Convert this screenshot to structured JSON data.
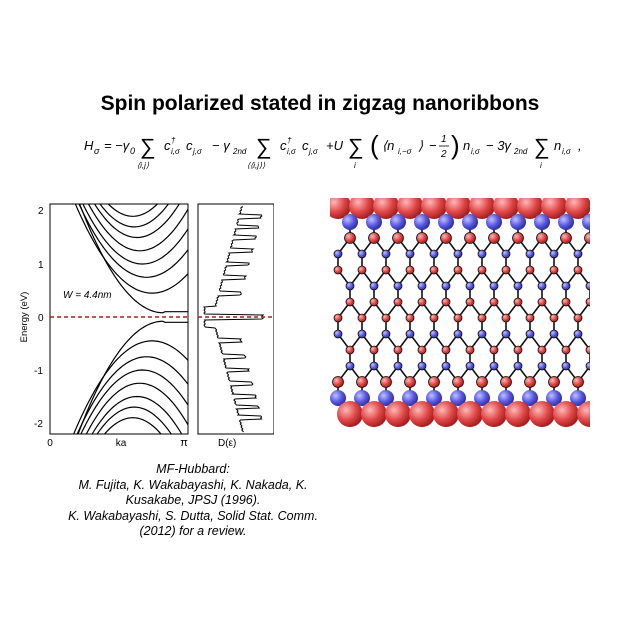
{
  "slide": {
    "title": "Spin polarized stated in zigzag nanoribbons"
  },
  "equation": {
    "H": "H",
    "H_sub": "σ",
    "eq": "= −γ",
    "g0_sub": "0",
    "sum1_sub": "⟨i,j⟩",
    "c1": "c",
    "c1_sup": "†",
    "c1_sub": "i,σ",
    "c2": "c",
    "c2_sub": "j,σ",
    "minus_g2": "− γ",
    "g2_sub": "2nd",
    "sum2_sub": "⟨⟨i,j⟩⟩",
    "c3": "c",
    "c3_sup": "†",
    "c3_sub": "i,σ",
    "c4": "c",
    "c4_sub": "j,σ",
    "plusU": "+U",
    "sum3_sub": "i",
    "n_expect": "⟨n",
    "n_expect_sub": "i,−σ",
    "n_expect_close": "⟩",
    "minus_half": "−",
    "half_num": "1",
    "half_den": "2",
    "n_after": "n",
    "n_after_sub": "i,σ",
    "minus3": "− 3γ",
    "g3_sub": "2nd",
    "sum4_sub": "i",
    "n_last": "n",
    "n_last_sub": "i,σ",
    "end": ","
  },
  "band_plot": {
    "ylabel": "Energy (eV)",
    "xlabel": "ka",
    "x_tick_left": "0",
    "x_tick_right": "π",
    "y_ticks": [
      "2",
      "1",
      "0",
      "-1",
      "-2"
    ],
    "width_label": "W = 4.4nm",
    "fermi_color": "#b01c1c"
  },
  "dos_plot": {
    "xlabel": "D(ε)"
  },
  "lattice": {
    "up_color": "#e04848",
    "down_color": "#5a5ae0",
    "bond_color": "#111111"
  },
  "caption": {
    "line1": "MF-Hubbard:",
    "line2": "M. Fujita, K. Wakabayashi, K. Nakada, K.",
    "line3": "Kusakabe, JPSJ (1996).",
    "line4": "K. Wakabayashi, S. Dutta, Solid Stat. Comm.",
    "line5": "(2012) for a review."
  }
}
